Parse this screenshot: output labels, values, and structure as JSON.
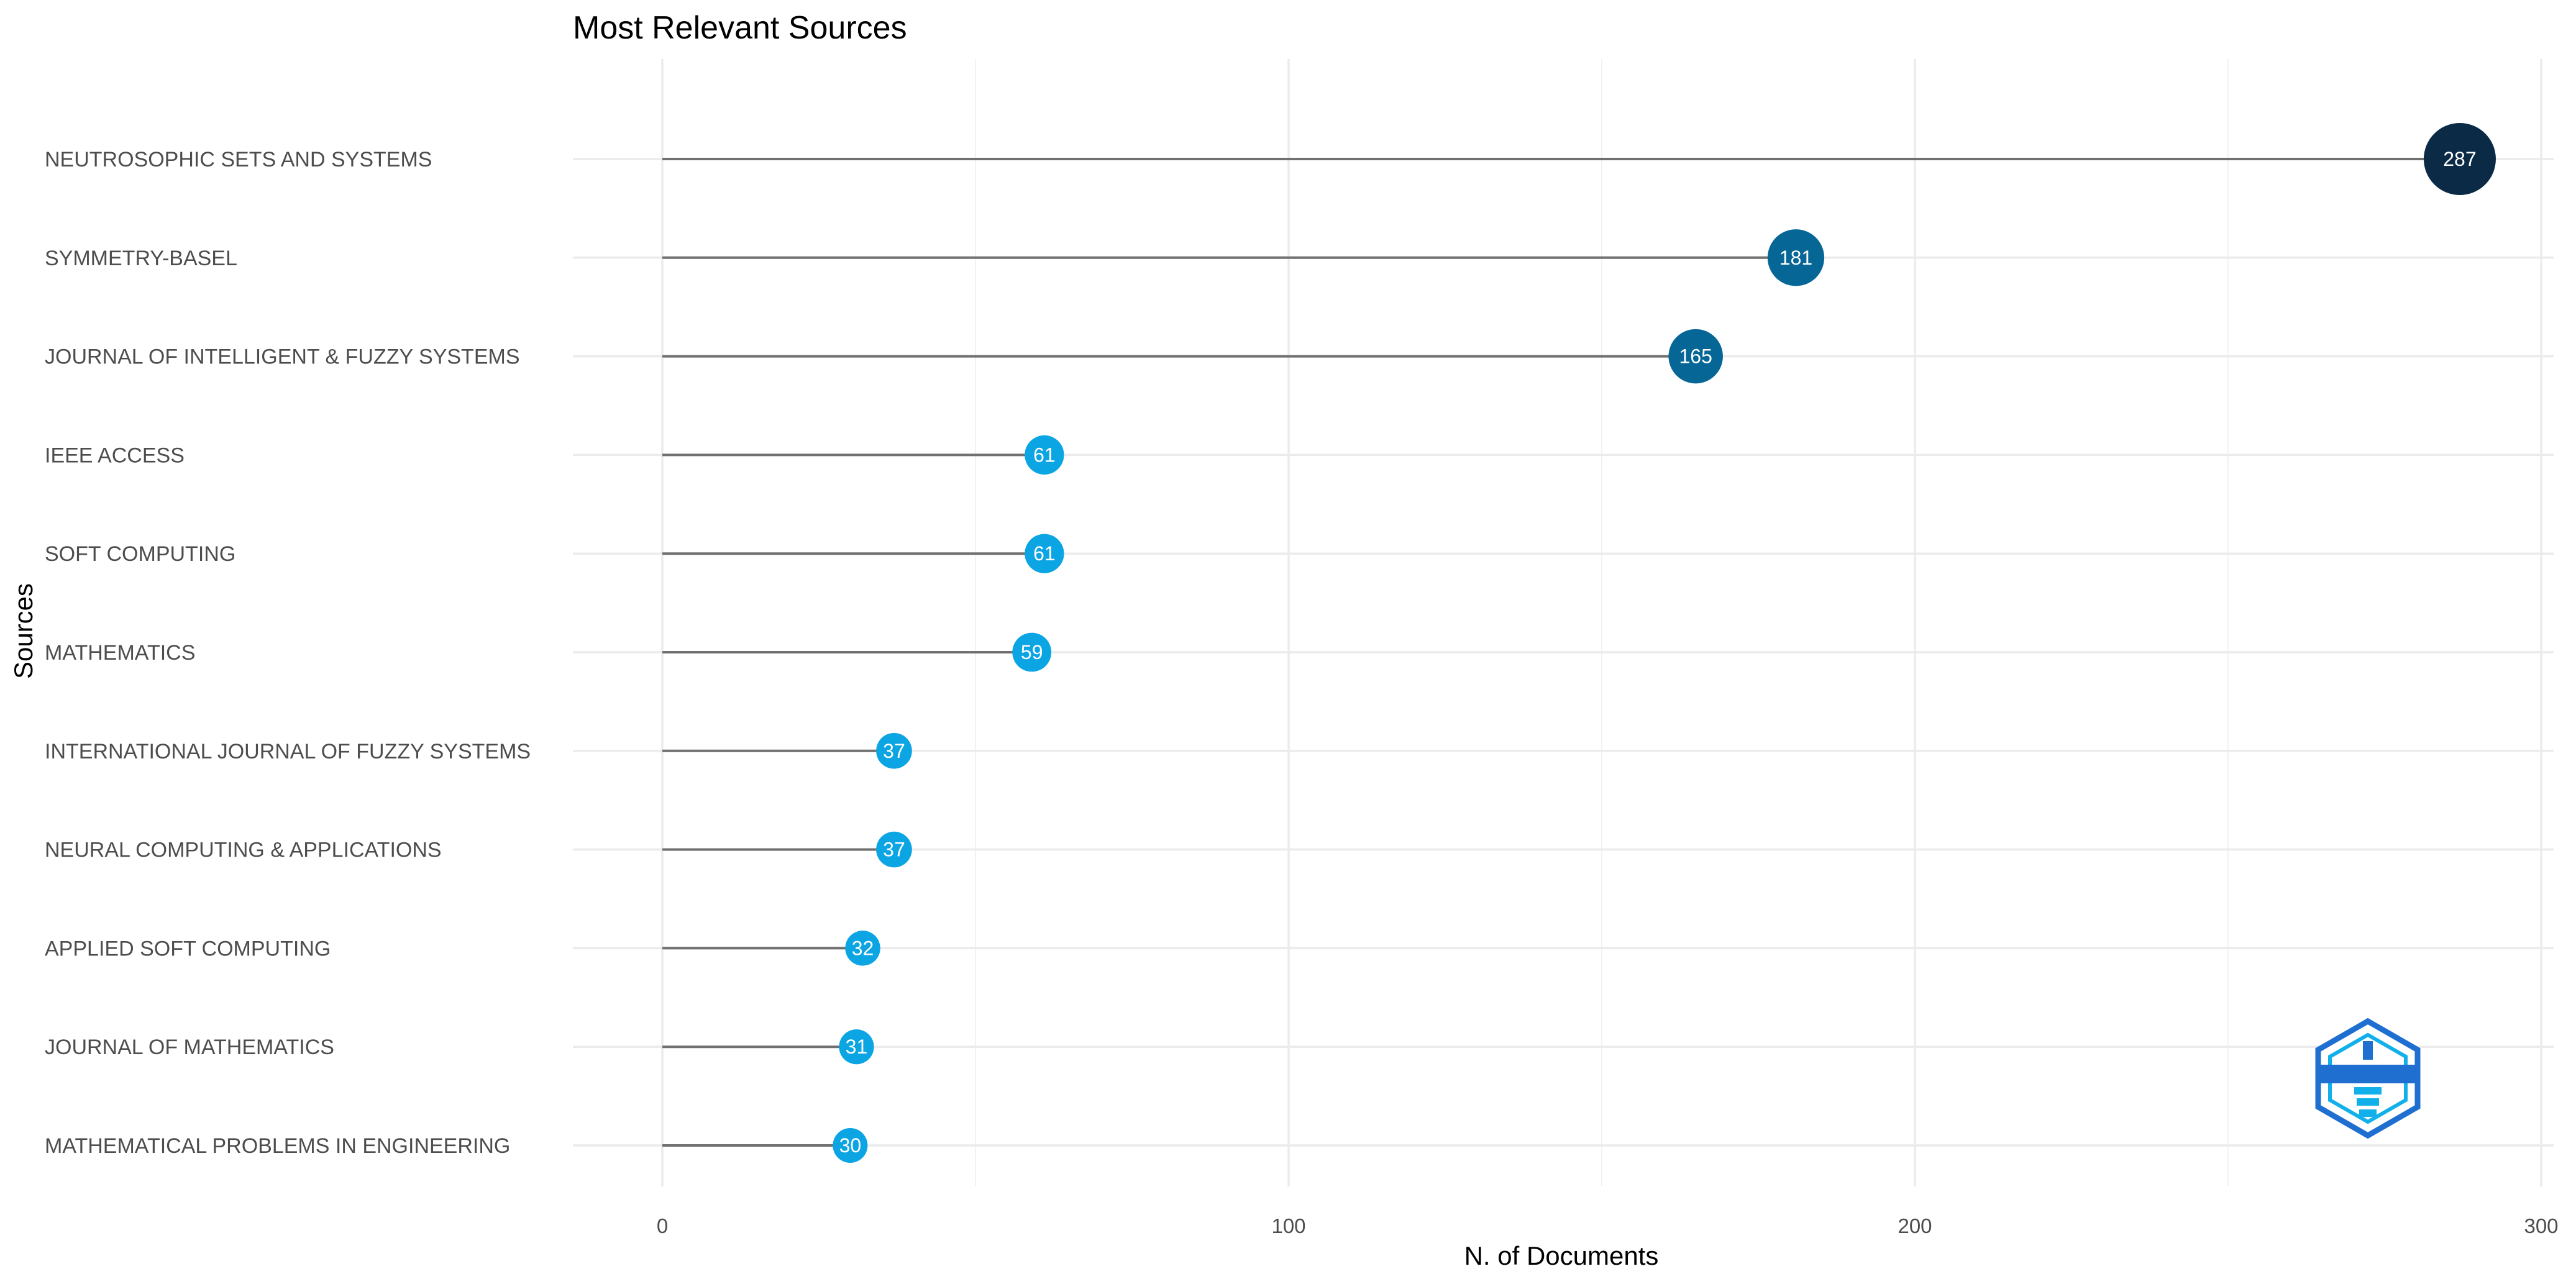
{
  "chart_data": {
    "type": "lollipop",
    "title": "Most Relevant Sources",
    "xlabel": "N. of Documents",
    "ylabel": "Sources",
    "xlim": [
      0,
      300
    ],
    "xticks": [
      0,
      100,
      200,
      300
    ],
    "categories": [
      "NEUTROSOPHIC SETS AND SYSTEMS",
      "SYMMETRY-BASEL",
      "JOURNAL OF INTELLIGENT & FUZZY SYSTEMS",
      "IEEE ACCESS",
      "SOFT COMPUTING",
      "MATHEMATICS",
      "INTERNATIONAL JOURNAL OF FUZZY SYSTEMS",
      "NEURAL COMPUTING & APPLICATIONS",
      "APPLIED SOFT COMPUTING",
      "JOURNAL OF MATHEMATICS",
      "MATHEMATICAL PROBLEMS IN ENGINEERING"
    ],
    "values": [
      287,
      181,
      165,
      61,
      61,
      59,
      37,
      37,
      32,
      31,
      30
    ],
    "colors": {
      "dark": "#0b2a45",
      "mid": "#066797",
      "light": "#0ca5e3",
      "stem": "#707070",
      "grid": "#ebebeb"
    },
    "grid": true,
    "legend": "none",
    "logo": "bibliometrix-logo"
  }
}
